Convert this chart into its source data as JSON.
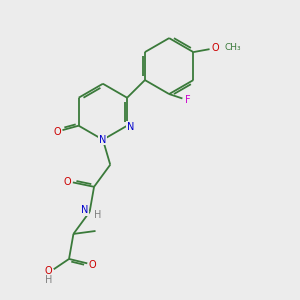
{
  "background_color": "#ececec",
  "C_color": "#3a7a3a",
  "N_color": "#0000cc",
  "O_color": "#cc0000",
  "F_color": "#cc00cc",
  "H_color": "#808080",
  "bond_color": "#3a7a3a",
  "lw": 1.3,
  "fs": 7.0,
  "xlim": [
    0,
    10
  ],
  "ylim": [
    0,
    10
  ]
}
